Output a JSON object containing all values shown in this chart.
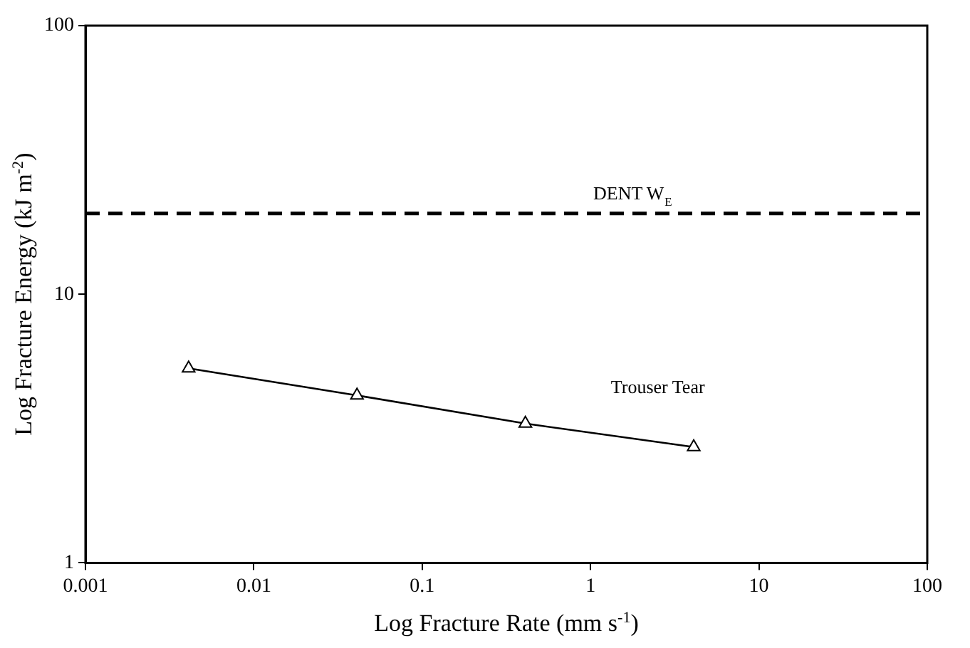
{
  "chart_data": {
    "type": "line",
    "xlabel": "Log Fracture Rate (mm s$^{-1}$)",
    "ylabel": "Log Fracture Energy (kJ m$^{-2}$)",
    "log": "xy",
    "xlim": [
      0.001,
      100
    ],
    "xticks": [
      0.001,
      0.01,
      0.1,
      1,
      10,
      100
    ],
    "ylim": [
      1,
      100
    ],
    "yticks": [
      1,
      10,
      100
    ],
    "grid": false,
    "legend": false,
    "marker": "triangle",
    "line_style": "solid",
    "series": [
      {
        "name": "Trouser Tear",
        "color": "#000000",
        "x": [
          0.0041,
          0.041,
          0.41,
          4.1
        ],
        "values": [
          5.3,
          4.2,
          3.3,
          2.7
        ]
      }
    ],
    "ref_lines": [
      {
        "axis": "y",
        "value": 20,
        "label": "DENT W$_{E}$",
        "color": "#000000",
        "line_style": "dashed"
      }
    ]
  }
}
